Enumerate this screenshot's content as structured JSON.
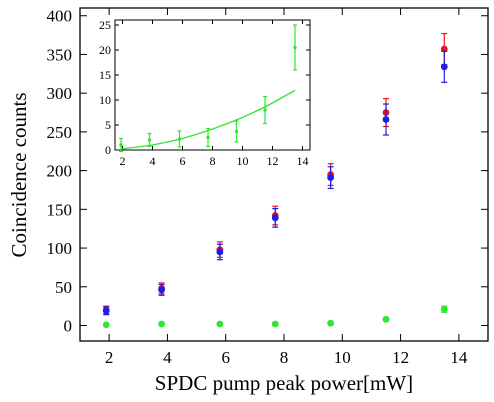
{
  "chart_data": [
    {
      "type": "scatter",
      "xlabel": "SPDC pump peak power[mW]",
      "ylabel": "Coincidence counts",
      "xlim": [
        1,
        15
      ],
      "ylim": [
        -20,
        410
      ],
      "xticks": [
        2,
        4,
        6,
        8,
        10,
        12,
        14
      ],
      "yticks": [
        0,
        50,
        100,
        150,
        200,
        250,
        300,
        350,
        400
      ],
      "grid": false,
      "series": [
        {
          "color": "#e8141e",
          "x": [
            1.9,
            3.8,
            5.8,
            7.7,
            9.6,
            11.5,
            13.5
          ],
          "y": [
            20,
            48,
            98,
            142,
            195,
            275,
            357
          ],
          "yerr": [
            5,
            7,
            10,
            12,
            14,
            18,
            20
          ]
        },
        {
          "color": "#1e1ee6",
          "x": [
            1.9,
            3.8,
            5.8,
            7.7,
            9.6,
            11.5,
            13.5
          ],
          "y": [
            19,
            46,
            95,
            139,
            191,
            266,
            334
          ],
          "yerr": [
            5,
            7,
            10,
            12,
            14,
            20,
            20
          ]
        },
        {
          "color": "#2ee82e",
          "x": [
            1.9,
            3.8,
            5.8,
            7.7,
            9.6,
            11.5,
            13.5
          ],
          "y": [
            1,
            2,
            2,
            2,
            3,
            8,
            21
          ],
          "yerr": [
            1,
            1,
            1,
            1,
            1,
            2,
            4
          ]
        }
      ]
    },
    {
      "type": "scatter",
      "xlim": [
        1.5,
        14.5
      ],
      "ylim": [
        0,
        26
      ],
      "xticks": [
        2,
        4,
        6,
        8,
        10,
        12,
        14
      ],
      "yticks": [
        0,
        5,
        10,
        15,
        20,
        25
      ],
      "grid": false,
      "series": [
        {
          "color": "#2ee82e",
          "x": [
            1.9,
            3.8,
            5.8,
            7.7,
            9.6,
            11.5,
            13.5
          ],
          "y": [
            1.0,
            2.0,
            2.2,
            2.5,
            3.7,
            8.0,
            20.5
          ],
          "yerr": [
            1.3,
            1.3,
            1.6,
            1.8,
            2.1,
            2.7,
            4.5
          ]
        },
        {
          "color": "#2ee82e",
          "fit": "quadratic",
          "x": [
            1.9,
            3.0,
            4.0,
            5.0,
            6.0,
            7.0,
            8.0,
            9.0,
            10.0,
            11.0,
            12.0,
            13.0,
            13.5
          ],
          "y": [
            0.2,
            0.6,
            1.0,
            1.6,
            2.3,
            3.2,
            4.2,
            5.3,
            6.5,
            7.9,
            9.4,
            11.1,
            11.9
          ]
        }
      ]
    }
  ]
}
